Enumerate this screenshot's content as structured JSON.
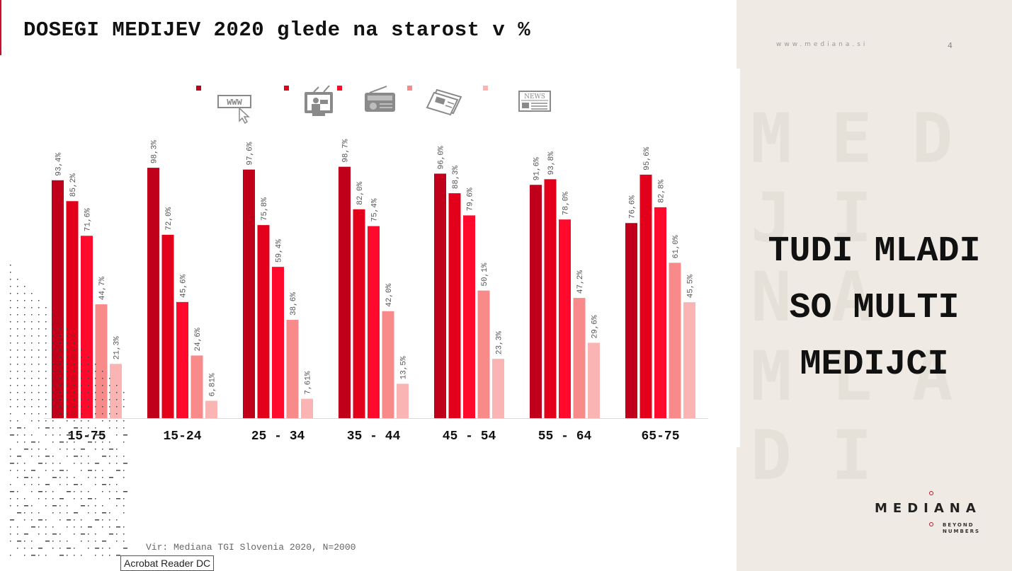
{
  "header": {
    "title": "DOSEGI MEDIJEV 2020 glede na starost v %"
  },
  "sidebar": {
    "site_url": "www.mediana.si",
    "page_number": "4",
    "watermark_text": "MED\nJI\nNA\nMLA\nDI",
    "headline_lines": [
      "TUDI MLADI",
      "SO MULTI",
      "MEDIJCI"
    ],
    "logo": {
      "brand": "MEDIANA",
      "tagline": "BEYOND\nNUMBERS"
    }
  },
  "legend_icons": [
    "internet-icon",
    "tv-icon",
    "radio-icon",
    "magazine-icon",
    "newspaper-icon"
  ],
  "colors": {
    "accent": "#c8102e",
    "series": [
      "#c0001a",
      "#e2001a",
      "#ff0a2c",
      "#f98a8a",
      "#fbb4b4"
    ]
  },
  "chart_data": {
    "type": "bar",
    "categories": [
      "15-75",
      "15-24",
      "25 - 34",
      "35 - 44",
      "45 - 54",
      "55 - 64",
      "65-75"
    ],
    "series": [
      {
        "icon": "internet-icon",
        "values": [
          93.4,
          98.3,
          97.6,
          98.7,
          96.0,
          91.6,
          76.6
        ],
        "labels": [
          "93,4%",
          "98,3%",
          "97,6%",
          "98,7%",
          "96,0%",
          "91,6%",
          "76,6%"
        ]
      },
      {
        "icon": "tv-icon",
        "values": [
          85.2,
          72.0,
          75.8,
          82.0,
          88.3,
          93.8,
          95.6
        ],
        "labels": [
          "85,2%",
          "72,0%",
          "75,8%",
          "82,0%",
          "88,3%",
          "93,8%",
          "95,6%"
        ]
      },
      {
        "icon": "radio-icon",
        "values": [
          71.6,
          45.6,
          59.4,
          75.4,
          79.6,
          78.0,
          82.8
        ],
        "labels": [
          "71,6%",
          "45,6%",
          "59,4%",
          "75,4%",
          "79,6%",
          "78,0%",
          "82,8%"
        ]
      },
      {
        "icon": "magazine-icon",
        "values": [
          44.7,
          24.6,
          38.6,
          42.0,
          50.1,
          47.2,
          61.0
        ],
        "labels": [
          "44,7%",
          "24,6%",
          "38,6%",
          "42,0%",
          "50,1%",
          "47,2%",
          "61,0%"
        ]
      },
      {
        "icon": "newspaper-icon",
        "values": [
          21.3,
          6.81,
          7.61,
          13.5,
          23.3,
          29.6,
          45.5
        ],
        "labels": [
          "21,3%",
          "6,81%",
          "7,61%",
          "13,5%",
          "23,3%",
          "29,6%",
          "45,5%"
        ]
      }
    ],
    "ylim": [
      0,
      100
    ],
    "grid": false,
    "legend": "top"
  },
  "footer": {
    "source": "Vir: Mediana TGI Slovenia 2020, N=2000"
  },
  "overlay": {
    "tooltip": "Acrobat Reader DC"
  }
}
